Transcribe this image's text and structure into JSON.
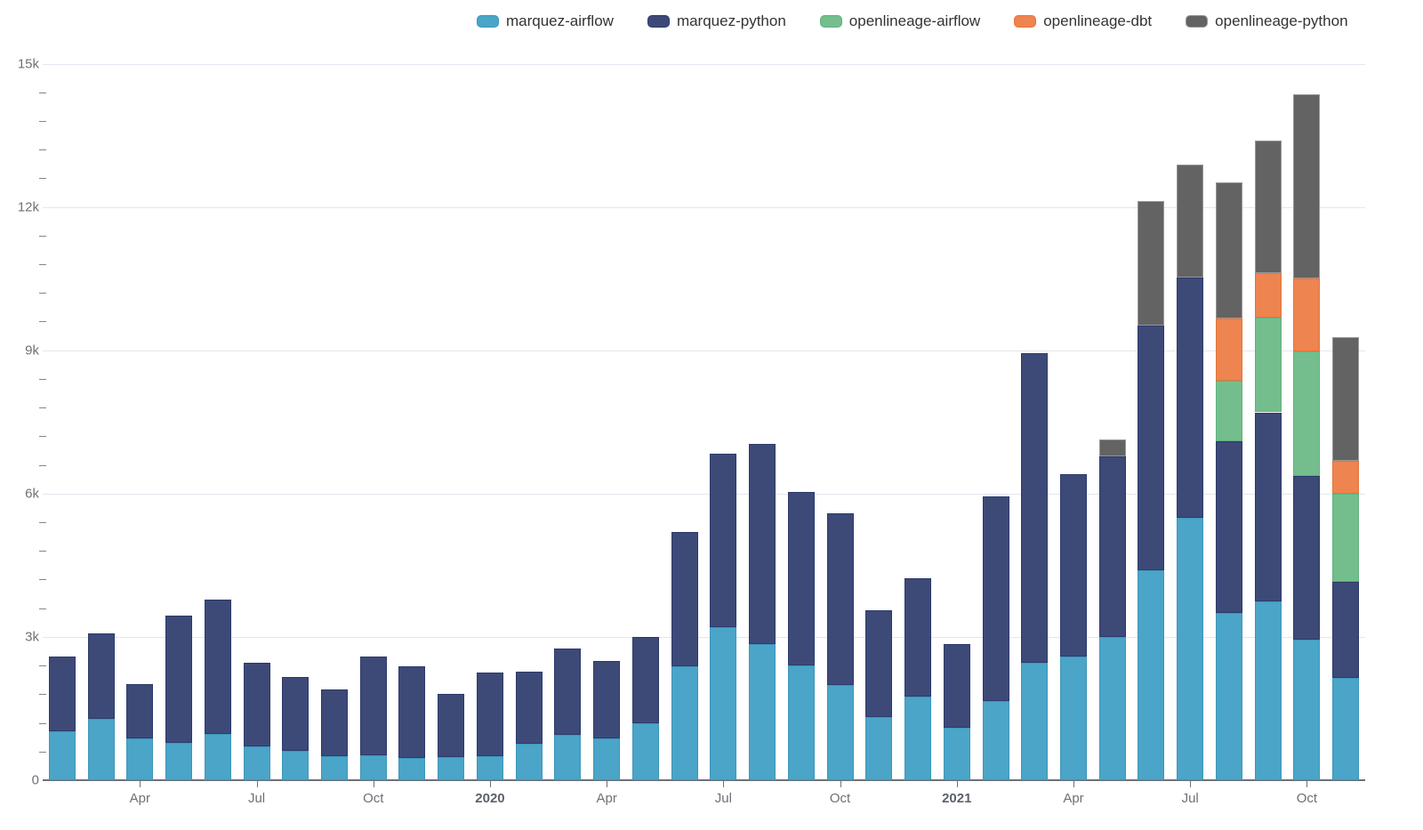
{
  "chart_data": {
    "type": "bar",
    "stacked": true,
    "title": "",
    "categories": [
      "2019-02",
      "2019-03",
      "2019-04",
      "2019-05",
      "2019-06",
      "2019-07",
      "2019-08",
      "2019-09",
      "2019-10",
      "2019-11",
      "2019-12",
      "2020-01",
      "2020-02",
      "2020-03",
      "2020-04",
      "2020-05",
      "2020-06",
      "2020-07",
      "2020-08",
      "2020-09",
      "2020-10",
      "2020-11",
      "2020-12",
      "2021-01",
      "2021-02",
      "2021-03",
      "2021-04",
      "2021-05",
      "2021-06",
      "2021-07",
      "2021-08",
      "2021-09",
      "2021-10",
      "2021-11"
    ],
    "series": [
      {
        "name": "marquez-airflow",
        "color": "#4AA5C8",
        "border_color": "#3E96BA",
        "values": [
          1020,
          1280,
          880,
          780,
          960,
          700,
          610,
          500,
          530,
          470,
          480,
          500,
          760,
          950,
          870,
          1200,
          2390,
          3200,
          2850,
          2410,
          1990,
          1330,
          1750,
          1090,
          1650,
          2450,
          2590,
          2990,
          4400,
          5500,
          3500,
          3750,
          2950,
          2150
        ]
      },
      {
        "name": "marquez-python",
        "color": "#3D4A78",
        "border_color": "#2C3A6B",
        "values": [
          1560,
          1800,
          1130,
          2660,
          2820,
          1760,
          1550,
          1400,
          2060,
          1920,
          1320,
          1750,
          1520,
          1810,
          1630,
          1800,
          2810,
          3630,
          4190,
          3620,
          3600,
          2220,
          2480,
          1760,
          4290,
          6490,
          3820,
          3790,
          5120,
          5030,
          3590,
          3950,
          3420,
          2010
        ]
      },
      {
        "name": "openlineage-airflow",
        "color": "#74BE8D",
        "border_color": "#63B17E",
        "values": [
          0,
          0,
          0,
          0,
          0,
          0,
          0,
          0,
          0,
          0,
          0,
          0,
          0,
          0,
          0,
          0,
          0,
          0,
          0,
          0,
          0,
          0,
          0,
          0,
          0,
          0,
          0,
          0,
          0,
          0,
          1270,
          1980,
          2610,
          1830
        ]
      },
      {
        "name": "openlineage-dbt",
        "color": "#EE8450",
        "border_color": "#E4753B",
        "values": [
          0,
          0,
          0,
          0,
          0,
          0,
          0,
          0,
          0,
          0,
          0,
          0,
          0,
          0,
          0,
          0,
          0,
          0,
          0,
          0,
          0,
          0,
          0,
          0,
          0,
          0,
          0,
          0,
          0,
          0,
          1300,
          940,
          1530,
          700
        ]
      },
      {
        "name": "openlineage-python",
        "color": "#636363",
        "border_color": "#979797",
        "values": [
          0,
          0,
          0,
          0,
          0,
          0,
          0,
          0,
          0,
          0,
          0,
          0,
          0,
          0,
          0,
          0,
          0,
          0,
          0,
          0,
          0,
          0,
          0,
          0,
          0,
          0,
          0,
          350,
          2600,
          2350,
          2850,
          2760,
          3840,
          2580
        ]
      }
    ],
    "ylim": [
      0,
      15000
    ],
    "y_ticks": [
      {
        "value": 0,
        "label": "0"
      },
      {
        "value": 3000,
        "label": "3k"
      },
      {
        "value": 6000,
        "label": "6k"
      },
      {
        "value": 9000,
        "label": "9k"
      },
      {
        "value": 12000,
        "label": "12k"
      },
      {
        "value": 15000,
        "label": "15k"
      }
    ],
    "y_minor_step": 600,
    "x_ticks": [
      {
        "index": 2,
        "label": "Apr",
        "bold": false
      },
      {
        "index": 5,
        "label": "Jul",
        "bold": false
      },
      {
        "index": 8,
        "label": "Oct",
        "bold": false
      },
      {
        "index": 11,
        "label": "2020",
        "bold": true
      },
      {
        "index": 14,
        "label": "Apr",
        "bold": false
      },
      {
        "index": 17,
        "label": "Jul",
        "bold": false
      },
      {
        "index": 20,
        "label": "Oct",
        "bold": false
      },
      {
        "index": 23,
        "label": "2021",
        "bold": true
      },
      {
        "index": 26,
        "label": "Apr",
        "bold": false
      },
      {
        "index": 29,
        "label": "Jul",
        "bold": false
      },
      {
        "index": 32,
        "label": "Oct",
        "bold": false
      }
    ],
    "grid": true,
    "legend_position": "top"
  },
  "style": {
    "background": "#ffffff",
    "gridline_color": "#e2e6f0",
    "axis_line_color": "#6E7079",
    "axis_label_color": "#6E7079",
    "legend_text_color": "#333333"
  }
}
